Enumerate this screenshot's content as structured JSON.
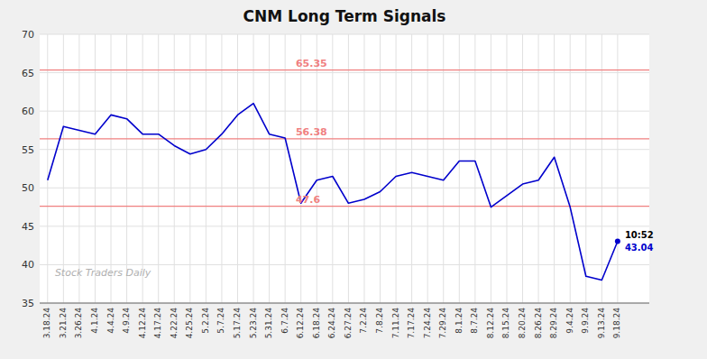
{
  "chart_data": {
    "type": "line",
    "title": "CNM Long Term Signals",
    "categories": [
      "3.18.24",
      "3.21.24",
      "3.26.24",
      "4.1.24",
      "4.4.24",
      "4.9.24",
      "4.12.24",
      "4.17.24",
      "4.22.24",
      "4.25.24",
      "5.2.24",
      "5.7.24",
      "5.17.24",
      "5.23.24",
      "5.31.24",
      "6.7.24",
      "6.12.24",
      "6.18.24",
      "6.24.24",
      "6.27.24",
      "7.2.24",
      "7.8.24",
      "7.11.24",
      "7.17.24",
      "7.24.24",
      "7.29.24",
      "8.1.24",
      "8.7.24",
      "8.12.24",
      "8.15.24",
      "8.20.24",
      "8.26.24",
      "8.29.24",
      "9.4.24",
      "9.9.24",
      "9.13.24",
      "9.18.24"
    ],
    "values": [
      51.0,
      58.0,
      57.5,
      57.0,
      59.5,
      59.0,
      57.0,
      57.0,
      55.5,
      54.4,
      55.0,
      57.0,
      59.5,
      61.0,
      57.0,
      56.5,
      48.0,
      51.0,
      51.5,
      48.0,
      48.5,
      49.5,
      51.5,
      52.0,
      51.5,
      51.0,
      53.5,
      53.5,
      47.5,
      49.0,
      50.5,
      51.0,
      54.0,
      47.5,
      38.5,
      38.0,
      43.04
    ],
    "color": "#0000cc",
    "ylim": [
      35,
      70
    ],
    "yticks": [
      35,
      40,
      45,
      50,
      55,
      60,
      65,
      70
    ],
    "grid": true,
    "reference_lines": [
      {
        "value": 65.35,
        "label": "65.35",
        "color": "#f08080"
      },
      {
        "value": 56.38,
        "label": "56.38",
        "color": "#f08080"
      },
      {
        "value": 47.6,
        "label": "47.6",
        "color": "#f08080"
      }
    ],
    "annotations": [
      {
        "text": "Stock Traders Daily"
      },
      {
        "text": "10:52"
      },
      {
        "text": "43.04",
        "value": 43.04
      }
    ]
  }
}
